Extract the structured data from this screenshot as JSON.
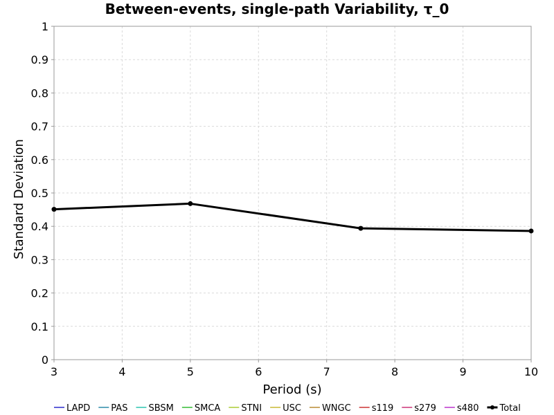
{
  "chart_data": {
    "type": "line",
    "title": "Between-events, single-path Variability, τ_0",
    "xlabel": "Period (s)",
    "ylabel": "Standard Deviation",
    "xlim": [
      3,
      10
    ],
    "ylim": [
      0,
      1
    ],
    "xticks": [
      3,
      4,
      5,
      6,
      7,
      8,
      9,
      10
    ],
    "yticks": [
      0,
      0.1,
      0.2,
      0.3,
      0.4,
      0.5,
      0.6,
      0.7,
      0.8,
      0.9,
      1
    ],
    "grid": true,
    "legend_position": "bottom",
    "series": [
      {
        "name": "LAPD",
        "color": "#2b2bcc",
        "x": [],
        "y": []
      },
      {
        "name": "PAS",
        "color": "#2b8aa8",
        "x": [],
        "y": []
      },
      {
        "name": "SBSM",
        "color": "#2bc4b0",
        "x": [],
        "y": []
      },
      {
        "name": "SMCA",
        "color": "#33bb33",
        "x": [],
        "y": []
      },
      {
        "name": "STNI",
        "color": "#aacc33",
        "x": [],
        "y": []
      },
      {
        "name": "USC",
        "color": "#c8b833",
        "x": [],
        "y": []
      },
      {
        "name": "WNGC",
        "color": "#b88a33",
        "x": [],
        "y": []
      },
      {
        "name": "s119",
        "color": "#cc3333",
        "x": [],
        "y": []
      },
      {
        "name": "s279",
        "color": "#cc3377",
        "x": [],
        "y": []
      },
      {
        "name": "s480",
        "color": "#bb33cc",
        "x": [],
        "y": []
      },
      {
        "name": "Total",
        "color": "#000000",
        "x": [
          3,
          5,
          7.5,
          10
        ],
        "y": [
          0.451,
          0.468,
          0.394,
          0.386
        ]
      }
    ]
  }
}
